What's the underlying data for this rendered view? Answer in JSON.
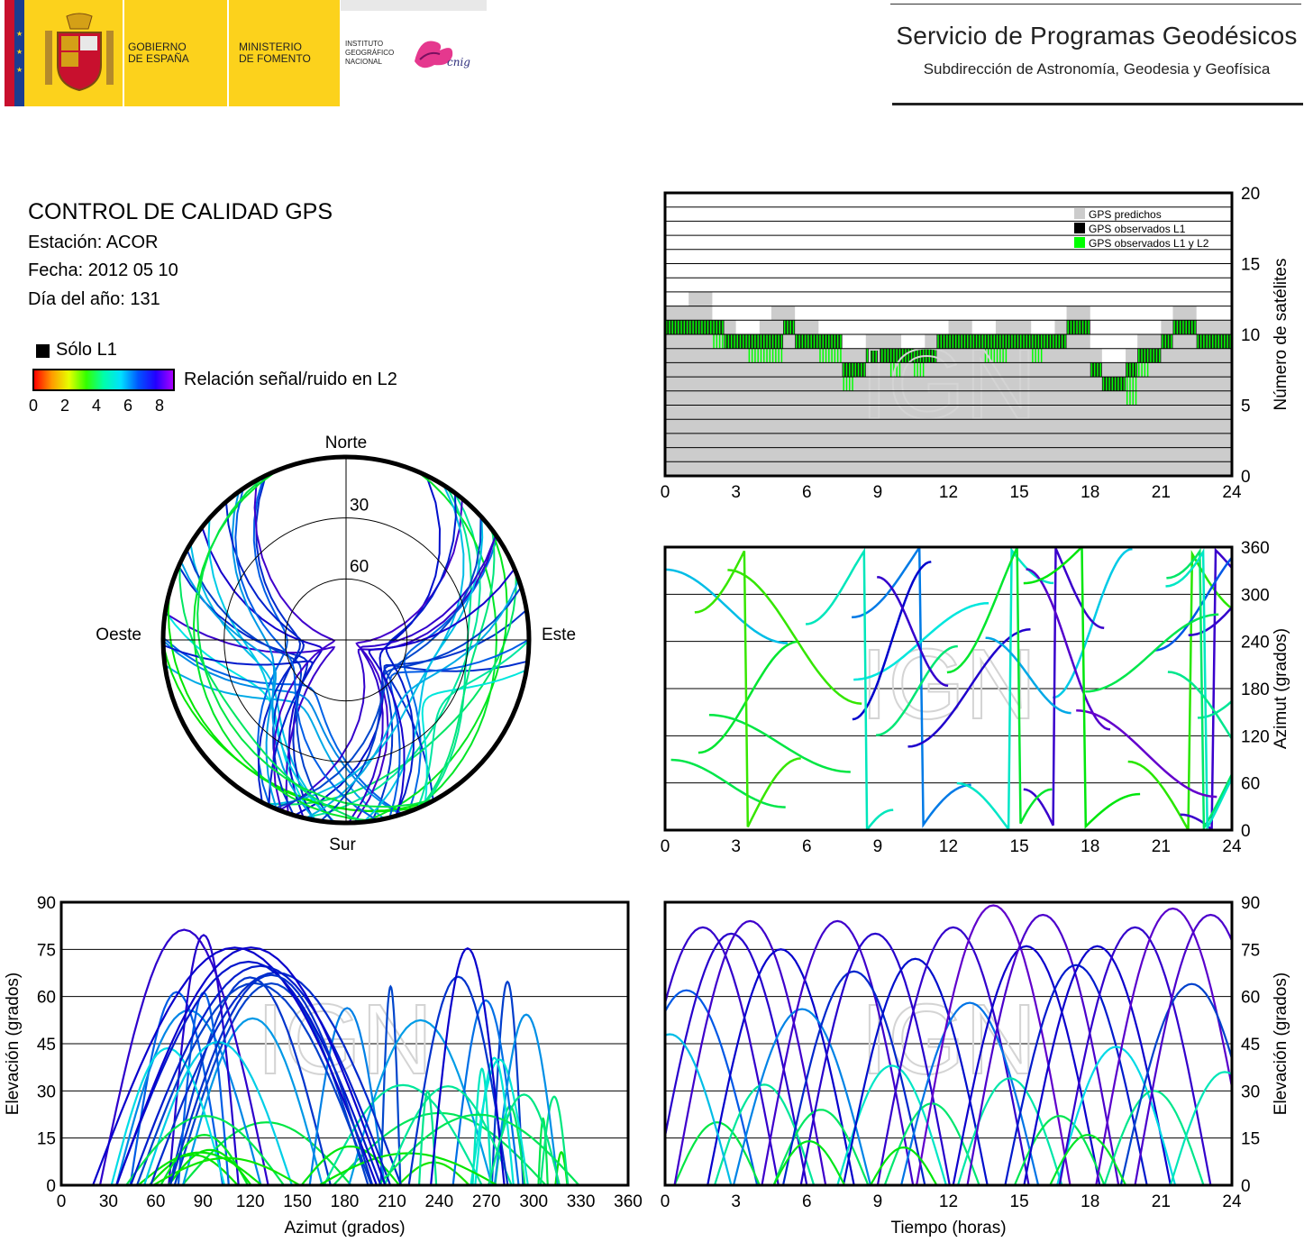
{
  "header": {
    "gobierno": [
      "GOBIERNO",
      "DE ESPAÑA"
    ],
    "ministerio": [
      "MINISTERIO",
      "DE FOMENTO"
    ],
    "instituto": [
      "INSTITUTO",
      "GEOGRÁFICO",
      "NACIONAL"
    ],
    "cnig": "cnig",
    "service_title": "Servicio de Programas Geodésicos",
    "service_subtitle": "Subdirección de Astronomía, Geodesia y Geofísica"
  },
  "info": {
    "title": "CONTROL DE CALIDAD GPS",
    "station": "Estación: ACOR",
    "date": "Fecha: 2012 05 10",
    "doy": "Día del año: 131"
  },
  "legend": {
    "l1_only": "Sólo L1",
    "snr_label": "Relación señal/ruido en L2",
    "snr_ticks": [
      "0",
      "2",
      "4",
      "6",
      "8"
    ]
  },
  "watermark": "IGN",
  "chart_data": [
    {
      "type": "area",
      "name": "satellite-count",
      "x_ticks": [
        "0",
        "3",
        "6",
        "9",
        "12",
        "15",
        "18",
        "21",
        "24"
      ],
      "y_ticks": [
        "0",
        "5",
        "10",
        "15",
        "20"
      ],
      "ylabel": "Número de satélites",
      "xlim": [
        0,
        24
      ],
      "ylim": [
        0,
        20
      ],
      "grid": true,
      "legend_position": "top-right",
      "legend": [
        "GPS predichos",
        "GPS observados L1",
        "GPS observados L1 y L2"
      ],
      "colors": {
        "predicted": "#cccccc",
        "l1": "#000000",
        "l1l2": "#00ff00"
      },
      "x": [
        0,
        0.5,
        1,
        1.5,
        2,
        2.5,
        3,
        3.5,
        4,
        4.5,
        5,
        5.5,
        6,
        6.5,
        7,
        7.5,
        8,
        8.5,
        9,
        9.5,
        10,
        10.5,
        11,
        11.5,
        12,
        12.5,
        13,
        13.5,
        14,
        14.5,
        15,
        15.5,
        16,
        16.5,
        17,
        17.5,
        18,
        18.5,
        19,
        19.5,
        20,
        20.5,
        21,
        21.5,
        22,
        22.5,
        23,
        23.5,
        24
      ],
      "predicted": [
        12,
        12,
        13,
        13,
        11,
        11,
        10,
        10,
        11,
        12,
        12,
        11,
        11,
        10,
        10,
        9,
        9,
        10,
        10,
        10,
        9,
        9,
        10,
        10,
        11,
        11,
        10,
        10,
        11,
        11,
        11,
        10,
        10,
        11,
        12,
        12,
        9,
        8,
        8,
        9,
        10,
        10,
        11,
        12,
        12,
        11,
        11,
        11,
        12
      ],
      "observed_l1": [
        11,
        11,
        11,
        11,
        11,
        10,
        10,
        10,
        10,
        10,
        11,
        10,
        10,
        10,
        10,
        8,
        8,
        9,
        9,
        9,
        9,
        9,
        9,
        10,
        10,
        10,
        10,
        10,
        10,
        10,
        10,
        10,
        10,
        10,
        11,
        11,
        8,
        7,
        7,
        8,
        9,
        9,
        10,
        11,
        11,
        10,
        10,
        10,
        11
      ],
      "observed_l1_l2": [
        11,
        11,
        11,
        11,
        10,
        10,
        10,
        9,
        9,
        9,
        11,
        10,
        10,
        9,
        9,
        7,
        8,
        9,
        9,
        8,
        9,
        8,
        9,
        10,
        10,
        10,
        10,
        9,
        9,
        10,
        10,
        9,
        10,
        10,
        11,
        11,
        8,
        7,
        7,
        6,
        8,
        9,
        10,
        11,
        11,
        10,
        10,
        10,
        11
      ]
    },
    {
      "type": "scatter",
      "name": "azimuth-vs-time",
      "x_ticks": [
        "0",
        "3",
        "6",
        "9",
        "12",
        "15",
        "18",
        "21",
        "24"
      ],
      "y_ticks": [
        "0",
        "60",
        "120",
        "180",
        "240",
        "300",
        "360"
      ],
      "ylabel": "Azimut (grados)",
      "xlim": [
        0,
        24
      ],
      "ylim": [
        0,
        360
      ],
      "grid": true
    },
    {
      "type": "scatter",
      "name": "skyplot",
      "labels": {
        "north": "Norte",
        "south": "Sur",
        "east": "Este",
        "west": "Oeste"
      },
      "ring_labels": [
        "30",
        "60"
      ]
    },
    {
      "type": "scatter",
      "name": "elevation-vs-azimuth",
      "x_ticks": [
        "0",
        "30",
        "60",
        "90",
        "120",
        "150",
        "180",
        "210",
        "240",
        "270",
        "300",
        "330",
        "360"
      ],
      "y_ticks": [
        "0",
        "15",
        "30",
        "45",
        "60",
        "75",
        "90"
      ],
      "xlabel": "Azimut (grados)",
      "ylabel": "Elevación (grados)",
      "xlim": [
        0,
        360
      ],
      "ylim": [
        0,
        90
      ],
      "grid": true
    },
    {
      "type": "line",
      "name": "elevation-vs-time",
      "x_ticks": [
        "0",
        "3",
        "6",
        "9",
        "12",
        "15",
        "18",
        "21",
        "24"
      ],
      "y_ticks": [
        "0",
        "15",
        "30",
        "45",
        "60",
        "75",
        "90"
      ],
      "xlabel": "Tiempo (horas)",
      "ylabel": "Elevación (grados)",
      "xlim": [
        0,
        24
      ],
      "ylim": [
        0,
        90
      ],
      "grid": true,
      "passes": [
        {
          "peak_time": 0.9,
          "max_el": 62,
          "duration": 6.0
        },
        {
          "peak_time": 1.6,
          "max_el": 82,
          "duration": 6.4
        },
        {
          "peak_time": 2.2,
          "max_el": 20,
          "duration": 3.6
        },
        {
          "peak_time": 2.8,
          "max_el": 80,
          "duration": 6.4
        },
        {
          "peak_time": 3.6,
          "max_el": 84,
          "duration": 6.4
        },
        {
          "peak_time": 4.2,
          "max_el": 32,
          "duration": 4.2
        },
        {
          "peak_time": 4.9,
          "max_el": 75,
          "duration": 6.2
        },
        {
          "peak_time": 5.8,
          "max_el": 56,
          "duration": 5.8
        },
        {
          "peak_time": 6.6,
          "max_el": 24,
          "duration": 4.0
        },
        {
          "peak_time": 7.3,
          "max_el": 84,
          "duration": 6.4
        },
        {
          "peak_time": 8.0,
          "max_el": 68,
          "duration": 6.0
        },
        {
          "peak_time": 8.9,
          "max_el": 80,
          "duration": 6.3
        },
        {
          "peak_time": 9.6,
          "max_el": 38,
          "duration": 4.6
        },
        {
          "peak_time": 10.6,
          "max_el": 72,
          "duration": 6.1
        },
        {
          "peak_time": 11.3,
          "max_el": 26,
          "duration": 4.0
        },
        {
          "peak_time": 12.2,
          "max_el": 82,
          "duration": 6.4
        },
        {
          "peak_time": 12.9,
          "max_el": 58,
          "duration": 5.8
        },
        {
          "peak_time": 13.9,
          "max_el": 89,
          "duration": 6.5
        },
        {
          "peak_time": 14.6,
          "max_el": 34,
          "duration": 4.4
        },
        {
          "peak_time": 15.3,
          "max_el": 76,
          "duration": 6.2
        },
        {
          "peak_time": 16.0,
          "max_el": 86,
          "duration": 6.4
        },
        {
          "peak_time": 16.7,
          "max_el": 22,
          "duration": 3.8
        },
        {
          "peak_time": 17.4,
          "max_el": 70,
          "duration": 6.0
        },
        {
          "peak_time": 18.3,
          "max_el": 76,
          "duration": 6.2
        },
        {
          "peak_time": 19.1,
          "max_el": 44,
          "duration": 5.0
        },
        {
          "peak_time": 19.9,
          "max_el": 82,
          "duration": 6.4
        },
        {
          "peak_time": 20.7,
          "max_el": 30,
          "duration": 4.2
        },
        {
          "peak_time": 21.5,
          "max_el": 88,
          "duration": 6.5
        },
        {
          "peak_time": 22.3,
          "max_el": 64,
          "duration": 6.0
        },
        {
          "peak_time": 23.1,
          "max_el": 86,
          "duration": 6.4
        },
        {
          "peak_time": 23.7,
          "max_el": 36,
          "duration": 4.6
        },
        {
          "peak_time": 0.2,
          "max_el": 48,
          "duration": 5.2
        },
        {
          "peak_time": 6.1,
          "max_el": 14,
          "duration": 3.0
        },
        {
          "peak_time": 10.1,
          "max_el": 12,
          "duration": 2.8
        },
        {
          "peak_time": 17.9,
          "max_el": 16,
          "duration": 3.2
        }
      ]
    }
  ]
}
